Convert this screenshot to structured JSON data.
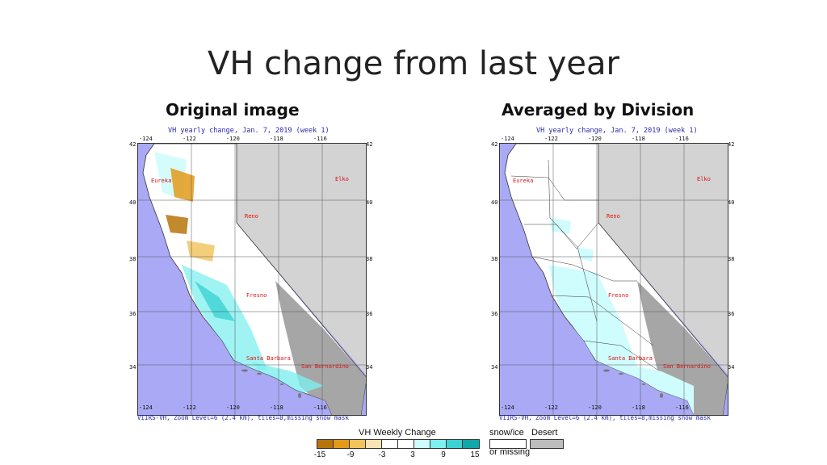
{
  "slide": {
    "title": "VH change from last year",
    "left_subtitle": "Original image",
    "right_subtitle": "Averaged by Division"
  },
  "maps": [
    {
      "id": "original",
      "header": "VH yearly change, Jan. 7, 2019 (week 1)",
      "footer": "VIIRS-VH, Zoom Level=6 (2.4 km), tiles=8,missing snow mask",
      "lon_ticks": [
        "-124",
        "-122",
        "-120",
        "-118",
        "-116"
      ],
      "lat_ticks": [
        "42",
        "40",
        "38",
        "36",
        "34"
      ],
      "cities": [
        "Eureka",
        "Elko",
        "Reno",
        "Fresno",
        "Santa Barbara",
        "San Bernardino"
      ]
    },
    {
      "id": "averaged",
      "header": "VH yearly change, Jan. 7, 2019 (week 1)",
      "footer": "VIIRS-VH, Zoom Level=6 (2.4 km), tiles=8,missing snow mask",
      "lon_ticks": [
        "-124",
        "-122",
        "-120",
        "-118",
        "-116"
      ],
      "lat_ticks": [
        "42",
        "40",
        "38",
        "36",
        "34"
      ],
      "cities": [
        "Eureka",
        "Elko",
        "Reno",
        "Fresno",
        "Santa Barbara",
        "San Bernardino"
      ]
    }
  ],
  "legend": {
    "title": "VH Weekly Change",
    "colors": [
      "#b8740a",
      "#e39a1a",
      "#f1c35a",
      "#fae3b2",
      "#ffffff",
      "#ffffff",
      "#cffcfc",
      "#7fefef",
      "#3cd2d2",
      "#10a8a8"
    ],
    "ticks": [
      "-15",
      "-9",
      "-3",
      "3",
      "9",
      "15"
    ],
    "snow_label_1": "snow/ice",
    "snow_label_2": "or missing",
    "desert_label": "Desert",
    "snow_color": "#ffffff",
    "desert_color": "#bdbdbd"
  },
  "colors": {
    "ocean": "#a9a9f5",
    "nevada": "#d3d3d3",
    "desert": "#a6a6a6",
    "city_text": "#e01010",
    "caption_text": "#2a2ab0"
  }
}
